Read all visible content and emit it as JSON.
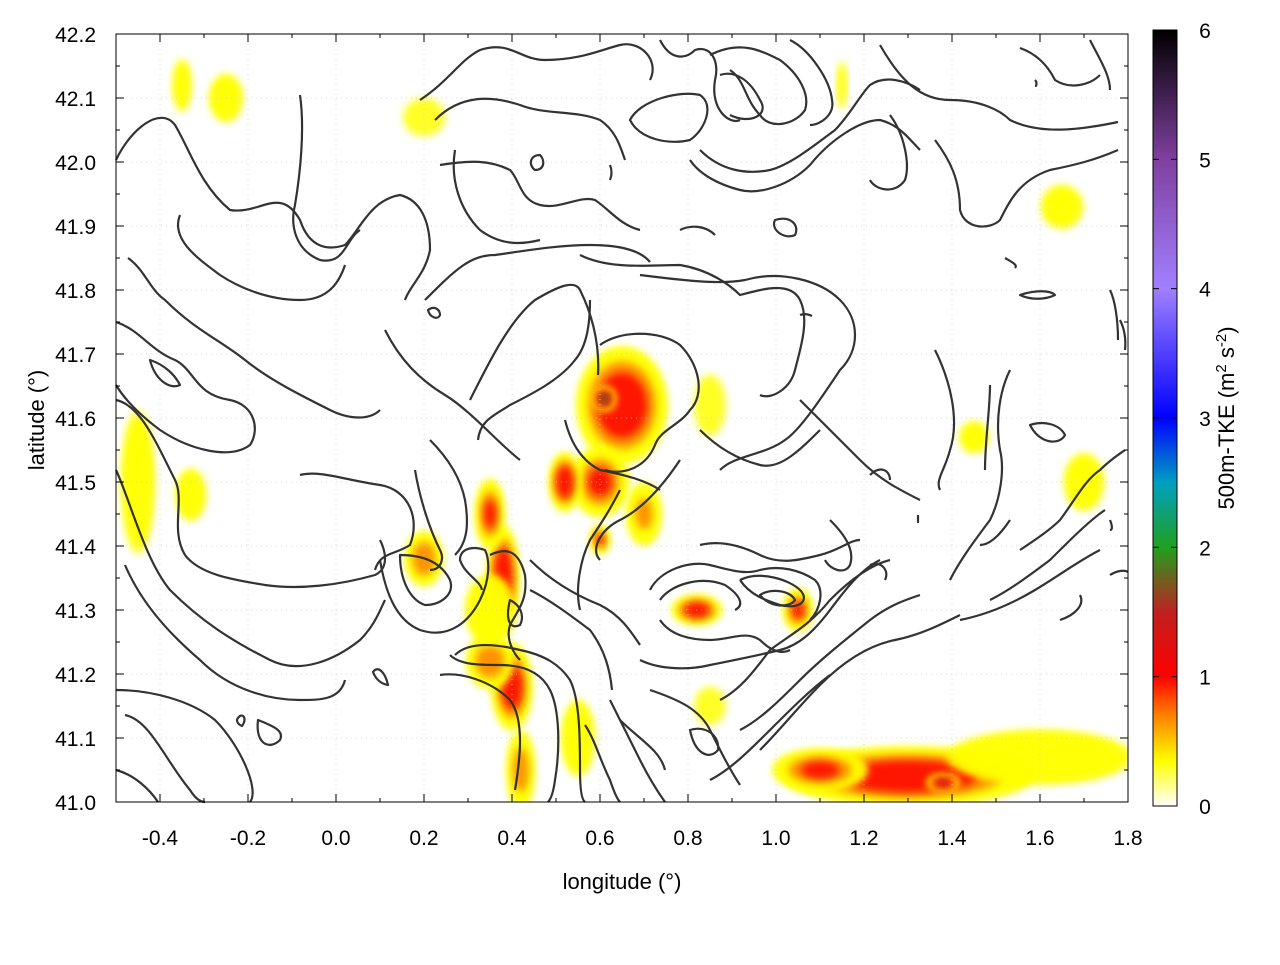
{
  "chart_data": {
    "type": "heatmap",
    "title": "",
    "xlabel": "longitude (°)",
    "ylabel": "latitude (°)",
    "xlim": [
      -0.5,
      1.8
    ],
    "ylim": [
      41.0,
      42.2
    ],
    "x_ticks": [
      "-0.4",
      "-0.2",
      "0.0",
      "0.2",
      "0.4",
      "0.6",
      "0.8",
      "1.0",
      "1.2",
      "1.4",
      "1.6",
      "1.8"
    ],
    "x_tick_values": [
      -0.4,
      -0.2,
      0.0,
      0.2,
      0.4,
      0.6,
      0.8,
      1.0,
      1.2,
      1.4,
      1.6,
      1.8
    ],
    "y_ticks": [
      "41.0",
      "41.1",
      "41.2",
      "41.3",
      "41.4",
      "41.5",
      "41.6",
      "41.7",
      "41.8",
      "41.9",
      "42.0",
      "42.1",
      "42.2"
    ],
    "y_tick_values": [
      41.0,
      41.1,
      41.2,
      41.3,
      41.4,
      41.5,
      41.6,
      41.7,
      41.8,
      41.9,
      42.0,
      42.1,
      42.2
    ],
    "grid": true,
    "colorbar": {
      "label_main": "500m-TKE (m",
      "label_sup1": "2",
      "label_mid": " s",
      "label_sup2": "-2",
      "label_end": ")",
      "ticks": [
        "0",
        "1",
        "2",
        "3",
        "4",
        "5",
        "6"
      ],
      "tick_values": [
        0,
        1,
        2,
        3,
        4,
        5,
        6
      ],
      "range": [
        0,
        6
      ],
      "colors": [
        "#ffffff",
        "#ffff00",
        "#ff8000",
        "#ff0000",
        "#c02020",
        "#20a020",
        "#00a0c0",
        "#0000ff",
        "#a080ff",
        "#8040a0",
        "#000000"
      ]
    },
    "field_features": [
      {
        "lon": 0.65,
        "lat": 41.62,
        "tke": 1.3,
        "sx": 0.09,
        "sy": 0.08
      },
      {
        "lon": 0.61,
        "lat": 41.63,
        "tke": 2.0,
        "sx": 0.02,
        "sy": 0.015
      },
      {
        "lon": 0.6,
        "lat": 41.5,
        "tke": 1.0,
        "sx": 0.06,
        "sy": 0.05
      },
      {
        "lon": 0.52,
        "lat": 41.5,
        "tke": 1.3,
        "sx": 0.03,
        "sy": 0.04
      },
      {
        "lon": 0.38,
        "lat": 41.35,
        "tke": 1.4,
        "sx": 0.03,
        "sy": 0.07
      },
      {
        "lon": 0.35,
        "lat": 41.45,
        "tke": 1.0,
        "sx": 0.03,
        "sy": 0.05
      },
      {
        "lon": 0.4,
        "lat": 41.18,
        "tke": 1.2,
        "sx": 0.04,
        "sy": 0.06
      },
      {
        "lon": 0.35,
        "lat": 41.22,
        "tke": 0.9,
        "sx": 0.05,
        "sy": 0.04
      },
      {
        "lon": 0.42,
        "lat": 41.05,
        "tke": 0.8,
        "sx": 0.03,
        "sy": 0.06
      },
      {
        "lon": 0.2,
        "lat": 41.38,
        "tke": 0.9,
        "sx": 0.04,
        "sy": 0.04
      },
      {
        "lon": 0.6,
        "lat": 41.41,
        "tke": 1.0,
        "sx": 0.02,
        "sy": 0.02
      },
      {
        "lon": 0.7,
        "lat": 41.45,
        "tke": 0.7,
        "sx": 0.04,
        "sy": 0.05
      },
      {
        "lon": 0.82,
        "lat": 41.3,
        "tke": 1.2,
        "sx": 0.05,
        "sy": 0.02
      },
      {
        "lon": 1.05,
        "lat": 41.3,
        "tke": 1.0,
        "sx": 0.03,
        "sy": 0.03
      },
      {
        "lon": 1.3,
        "lat": 41.04,
        "tke": 1.3,
        "sx": 0.25,
        "sy": 0.04
      },
      {
        "lon": 1.6,
        "lat": 41.07,
        "tke": 0.5,
        "sx": 0.25,
        "sy": 0.05
      },
      {
        "lon": 1.1,
        "lat": 41.05,
        "tke": 1.0,
        "sx": 0.1,
        "sy": 0.03
      },
      {
        "lon": 1.38,
        "lat": 41.03,
        "tke": 1.8,
        "sx": 0.03,
        "sy": 0.01
      },
      {
        "lon": -0.45,
        "lat": 41.5,
        "tke": 0.4,
        "sx": 0.05,
        "sy": 0.15
      },
      {
        "lon": -0.33,
        "lat": 41.48,
        "tke": 0.35,
        "sx": 0.05,
        "sy": 0.06
      },
      {
        "lon": -0.25,
        "lat": 42.1,
        "tke": 0.4,
        "sx": 0.05,
        "sy": 0.05
      },
      {
        "lon": -0.35,
        "lat": 42.12,
        "tke": 0.35,
        "sx": 0.03,
        "sy": 0.06
      },
      {
        "lon": 0.2,
        "lat": 42.07,
        "tke": 0.3,
        "sx": 0.08,
        "sy": 0.05
      },
      {
        "lon": 1.65,
        "lat": 41.93,
        "tke": 0.35,
        "sx": 0.07,
        "sy": 0.05
      },
      {
        "lon": 1.45,
        "lat": 41.57,
        "tke": 0.45,
        "sx": 0.04,
        "sy": 0.03
      },
      {
        "lon": 1.7,
        "lat": 41.5,
        "tke": 0.4,
        "sx": 0.06,
        "sy": 0.06
      },
      {
        "lon": 0.85,
        "lat": 41.15,
        "tke": 0.3,
        "sx": 0.06,
        "sy": 0.05
      },
      {
        "lon": 0.55,
        "lat": 41.1,
        "tke": 0.4,
        "sx": 0.05,
        "sy": 0.08
      },
      {
        "lon": 0.35,
        "lat": 41.3,
        "tke": 0.6,
        "sx": 0.06,
        "sy": 0.06
      },
      {
        "lon": 1.15,
        "lat": 42.12,
        "tke": 0.6,
        "sx": 0.01,
        "sy": 0.04
      },
      {
        "lon": 0.85,
        "lat": 41.62,
        "tke": 0.3,
        "sx": 0.06,
        "sy": 0.08
      }
    ]
  }
}
